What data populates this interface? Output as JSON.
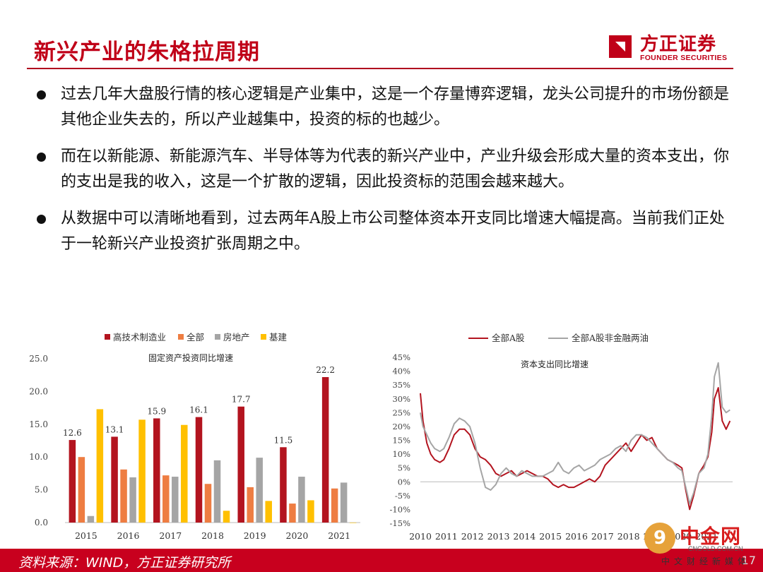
{
  "header": {
    "title": "新兴产业的朱格拉周期",
    "logo_cn": "方正证券",
    "logo_en": "FOUNDER SECURITIES"
  },
  "bullets": [
    "过去几年大盘股行情的核心逻辑是产业集中，这是一个存量博弈逻辑，龙头公司提升的市场份额是其他企业失去的，所以产业越集中，投资的标的也越少。",
    "而在以新能源、新能源汽车、半导体等为代表的新兴产业中，产业升级会形成大量的资本支出，你的支出是我的收入，这是一个扩散的逻辑，因此投资标的范围会越来越大。",
    "从数据中可以清晰地看到，过去两年A股上市公司整体资本开支同比增速大幅提高。当前我们正处于一轮新兴产业投资扩张周期之中。"
  ],
  "footer": {
    "source": "资料来源：WIND，方正证券研究所",
    "page": "17"
  },
  "watermark": {
    "name": "中金网",
    "url": "CNGOLD.COM.CN",
    "sub": "中文财经新媒体",
    "badge": "9"
  },
  "chart_data": [
    {
      "type": "bar",
      "title": "固定资产投资同比增速",
      "categories": [
        "2015",
        "2016",
        "2017",
        "2018",
        "2019",
        "2020",
        "2021"
      ],
      "series": [
        {
          "name": "高技术制造业",
          "color": "#b3141f",
          "values": [
            12.6,
            13.1,
            15.9,
            16.1,
            17.7,
            11.5,
            22.2
          ]
        },
        {
          "name": "全部",
          "color": "#ee7d42",
          "values": [
            10.0,
            8.1,
            7.2,
            5.9,
            5.4,
            2.9,
            5.2
          ]
        },
        {
          "name": "房地产",
          "color": "#a5a5a5",
          "values": [
            1.0,
            6.9,
            7.0,
            9.5,
            9.9,
            7.0,
            6.1
          ]
        },
        {
          "name": "基建",
          "color": "#ffc000",
          "values": [
            17.3,
            15.7,
            14.9,
            1.8,
            3.3,
            3.4,
            0.0
          ]
        }
      ],
      "data_labels": [
        "12.6",
        "13.1",
        "15.9",
        "16.1",
        "17.7",
        "11.5",
        "22.2"
      ],
      "ylim": [
        0,
        25
      ],
      "yticks": [
        "0.0",
        "5.0",
        "10.0",
        "15.0",
        "20.0",
        "25.0"
      ],
      "legend": "top"
    },
    {
      "type": "line",
      "title": "资本支出同比增速",
      "x_labels": [
        "2010",
        "2011",
        "2012",
        "2013",
        "2014",
        "2015",
        "2016",
        "2017",
        "2018",
        "2019",
        "2020",
        "2021"
      ],
      "ylim": [
        -15,
        45
      ],
      "yticks": [
        "-15%",
        "-10%",
        "-5%",
        "0%",
        "5%",
        "10%",
        "15%",
        "20%",
        "25%",
        "30%",
        "35%",
        "40%",
        "45%"
      ],
      "legend": "top",
      "series": [
        {
          "name": "全部A股",
          "color": "#b3141f",
          "x": [
            2010.0,
            2010.1,
            2010.25,
            2010.4,
            2010.55,
            2010.75,
            2010.9,
            2011.1,
            2011.3,
            2011.5,
            2011.7,
            2011.9,
            2012.1,
            2012.3,
            2012.5,
            2012.7,
            2012.9,
            2013.1,
            2013.3,
            2013.5,
            2013.7,
            2013.9,
            2014.1,
            2014.3,
            2014.5,
            2014.7,
            2014.9,
            2015.1,
            2015.3,
            2015.5,
            2015.7,
            2015.9,
            2016.1,
            2016.3,
            2016.5,
            2016.7,
            2016.9,
            2017.1,
            2017.3,
            2017.5,
            2017.7,
            2017.9,
            2018.1,
            2018.3,
            2018.5,
            2018.7,
            2018.9,
            2019.1,
            2019.3,
            2019.5,
            2019.7,
            2019.9,
            2020.05,
            2020.2,
            2020.35,
            2020.5,
            2020.7,
            2020.9,
            2021.05,
            2021.2,
            2021.3,
            2021.45,
            2021.6,
            2021.75,
            2021.9
          ],
          "values": [
            32,
            22,
            14,
            10,
            8,
            7,
            8,
            12,
            17,
            19,
            19,
            17,
            12,
            9,
            8,
            6,
            3,
            2,
            3,
            4,
            2,
            3,
            4,
            3,
            2,
            2,
            1,
            -1,
            -2,
            -1,
            -2,
            -2,
            -1,
            0,
            1,
            0,
            2,
            6,
            8,
            10,
            12,
            14,
            11,
            14,
            17,
            15,
            16,
            12,
            10,
            8,
            7,
            6,
            5,
            -3,
            -10,
            -5,
            3,
            6,
            9,
            18,
            30,
            34,
            22,
            19,
            22
          ]
        },
        {
          "name": "全部A股非金融两油",
          "color": "#a5a5a5",
          "x": [
            2010.0,
            2010.1,
            2010.25,
            2010.4,
            2010.55,
            2010.75,
            2010.9,
            2011.1,
            2011.3,
            2011.5,
            2011.7,
            2011.9,
            2012.1,
            2012.3,
            2012.5,
            2012.7,
            2012.9,
            2013.1,
            2013.3,
            2013.5,
            2013.7,
            2013.9,
            2014.1,
            2014.3,
            2014.5,
            2014.7,
            2014.9,
            2015.1,
            2015.3,
            2015.5,
            2015.7,
            2015.9,
            2016.1,
            2016.3,
            2016.5,
            2016.7,
            2016.9,
            2017.1,
            2017.3,
            2017.5,
            2017.7,
            2017.9,
            2018.1,
            2018.3,
            2018.5,
            2018.7,
            2018.9,
            2019.1,
            2019.3,
            2019.5,
            2019.7,
            2019.9,
            2020.05,
            2020.2,
            2020.35,
            2020.5,
            2020.7,
            2020.9,
            2021.05,
            2021.2,
            2021.3,
            2021.45,
            2021.6,
            2021.75,
            2021.9
          ],
          "values": [
            25,
            20,
            17,
            14,
            12,
            11,
            12,
            16,
            21,
            23,
            22,
            20,
            14,
            5,
            -2,
            -3,
            -1,
            3,
            5,
            3,
            2,
            4,
            3,
            2,
            2,
            2,
            3,
            4,
            7,
            4,
            3,
            5,
            6,
            4,
            5,
            6,
            8,
            9,
            10,
            12,
            13,
            11,
            15,
            17,
            17,
            16,
            14,
            12,
            10,
            8,
            7,
            5,
            4,
            -2,
            -8,
            -4,
            3,
            5,
            10,
            24,
            38,
            43,
            27,
            25,
            26
          ]
        }
      ]
    }
  ]
}
